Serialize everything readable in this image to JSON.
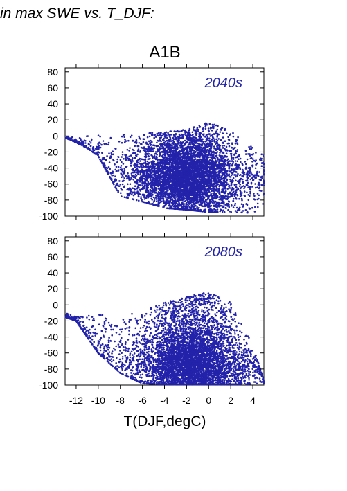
{
  "heading": "in max SWE vs. T_DJF:",
  "scenario": "A1B",
  "xlabel": "T(DJF,degC)",
  "colors": {
    "points": "#2222aa",
    "panel_label": "#2222aa",
    "axis": "#000000"
  },
  "chart_data": [
    {
      "type": "scatter",
      "panel_label": "2040s",
      "xlim": [
        -13,
        5
      ],
      "ylim": [
        -100,
        85
      ],
      "yticks": [
        80,
        60,
        40,
        20,
        0,
        -20,
        -40,
        -60,
        -80,
        -100
      ],
      "xticks": [
        -12,
        -10,
        -8,
        -6,
        -4,
        -2,
        0,
        2,
        4
      ],
      "show_x_tick_labels": false,
      "grid": false,
      "point_density": "approximately 6000 points, dense cloud",
      "envelope": {
        "x_range": [
          -13,
          5
        ],
        "y_max_by_x": [
          [
            -13,
            2
          ],
          [
            -12,
            -2
          ],
          [
            -11,
            0
          ],
          [
            -10,
            3
          ],
          [
            -8,
            2
          ],
          [
            -6,
            3
          ],
          [
            -4,
            5
          ],
          [
            -2,
            8
          ],
          [
            0,
            17
          ],
          [
            2,
            6
          ],
          [
            4,
            -15
          ],
          [
            5,
            -25
          ]
        ],
        "y_min_by_x": [
          [
            -13,
            -2
          ],
          [
            -12,
            -8
          ],
          [
            -11,
            -15
          ],
          [
            -10,
            -25
          ],
          [
            -8,
            -75
          ],
          [
            -6,
            -82
          ],
          [
            -4,
            -90
          ],
          [
            -2,
            -92
          ],
          [
            0,
            -95
          ],
          [
            2,
            -95
          ],
          [
            4,
            -96
          ],
          [
            5,
            -96
          ]
        ],
        "core": {
          "x_center": -2,
          "y_center": -50
        }
      }
    },
    {
      "type": "scatter",
      "panel_label": "2080s",
      "xlim": [
        -13,
        5
      ],
      "ylim": [
        -100,
        85
      ],
      "yticks": [
        80,
        60,
        40,
        20,
        0,
        -20,
        -40,
        -60,
        -80,
        -100
      ],
      "xticks": [
        -12,
        -10,
        -8,
        -6,
        -4,
        -2,
        0,
        2,
        4
      ],
      "xtick_labels": [
        "-12",
        "-10",
        "-8",
        "-6",
        "-4",
        "-2",
        "0",
        "2",
        "4"
      ],
      "show_x_tick_labels": true,
      "grid": false,
      "point_density": "approximately 6000 points, dense cloud",
      "envelope": {
        "x_range": [
          -13,
          5
        ],
        "y_max_by_x": [
          [
            -13,
            -10
          ],
          [
            -12,
            -15
          ],
          [
            -10,
            -12
          ],
          [
            -8,
            -12
          ],
          [
            -6,
            -8
          ],
          [
            -4,
            4
          ],
          [
            -2,
            10
          ],
          [
            0,
            17
          ],
          [
            2,
            3
          ],
          [
            4,
            -50
          ],
          [
            5,
            -95
          ]
        ],
        "y_min_by_x": [
          [
            -13,
            -15
          ],
          [
            -12,
            -20
          ],
          [
            -10,
            -60
          ],
          [
            -8,
            -85
          ],
          [
            -6,
            -98
          ],
          [
            -4,
            -99
          ],
          [
            -2,
            -99
          ],
          [
            0,
            -99
          ],
          [
            2,
            -99
          ],
          [
            4,
            -99
          ],
          [
            5,
            -99
          ]
        ],
        "core": {
          "x_center": -1.5,
          "y_center": -75
        }
      }
    }
  ]
}
